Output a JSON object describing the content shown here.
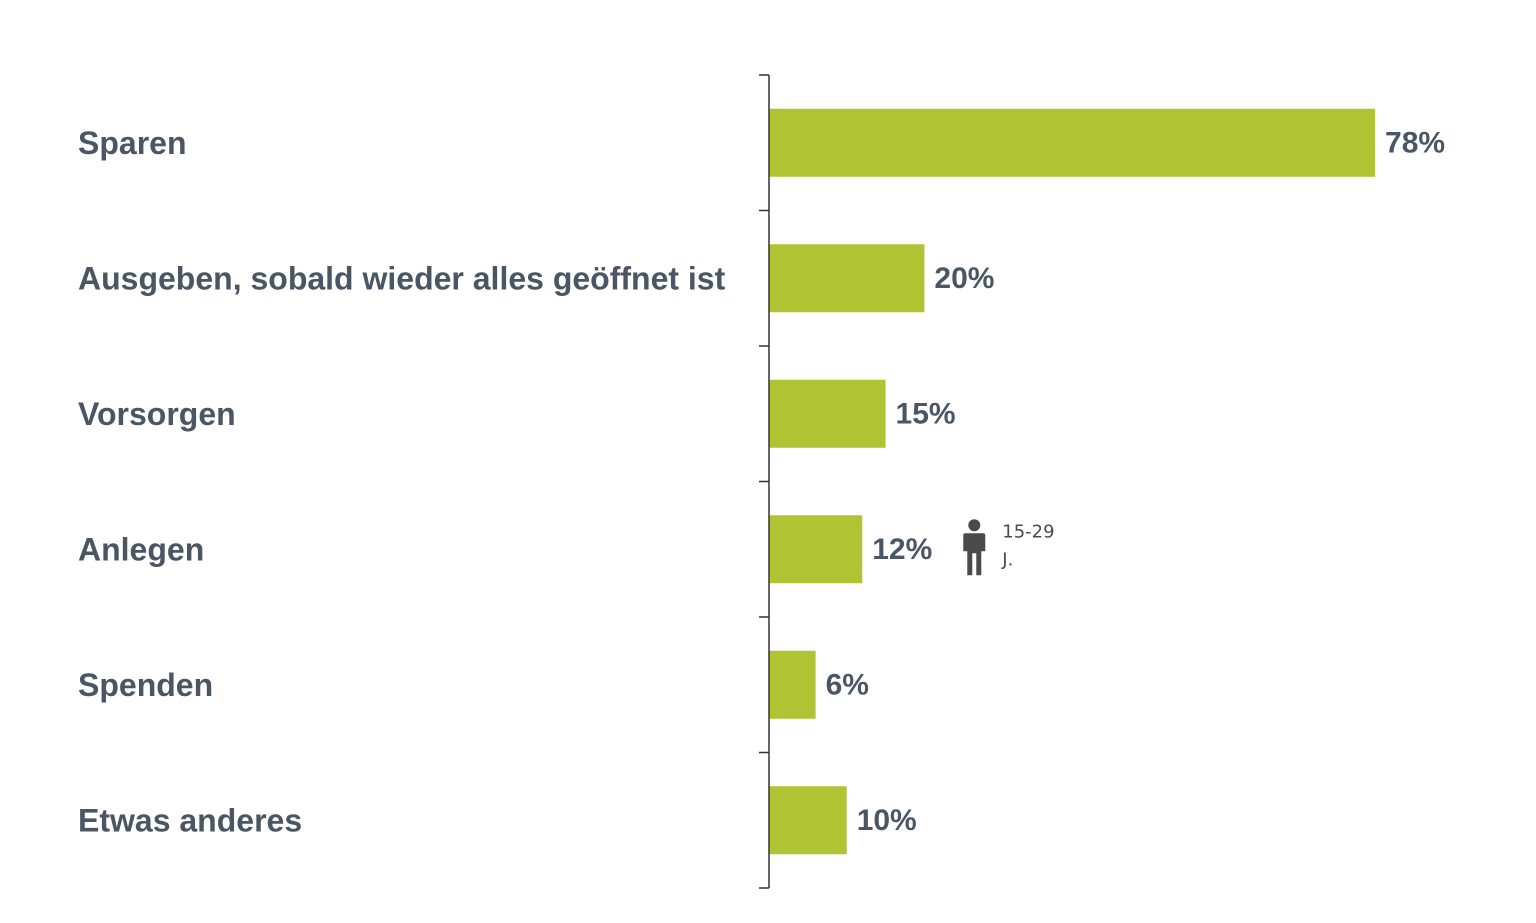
{
  "chart_data": {
    "type": "bar",
    "orientation": "horizontal",
    "categories": [
      "Sparen",
      "Ausgeben, sobald wieder alles geöffnet ist",
      "Vorsorgen",
      "Anlegen",
      "Spenden",
      "Etwas anderes"
    ],
    "values": [
      78,
      20,
      15,
      12,
      6,
      10
    ],
    "value_labels": [
      "78%",
      "20%",
      "15%",
      "12%",
      "6%",
      "10%"
    ],
    "value_unit": "%",
    "xlim": [
      0,
      100
    ],
    "grid": false,
    "legend": "none",
    "bar_color": "#b0c332",
    "annotation": {
      "category_index": 3,
      "icon": "person-icon",
      "text_line1": "15-29",
      "text_line2": "J."
    }
  },
  "colors": {
    "label": "#4a5663",
    "axis": "#333333",
    "annotation": "#4a4a4a"
  }
}
